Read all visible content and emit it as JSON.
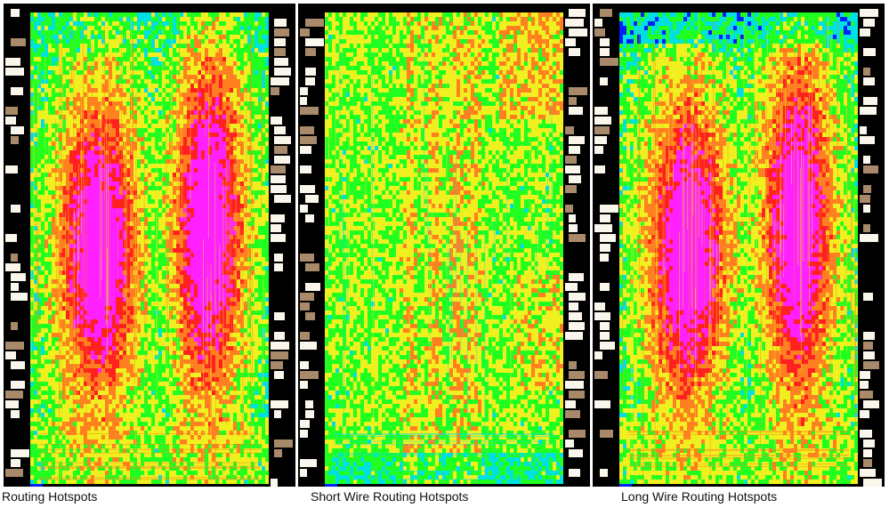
{
  "panels": [
    {
      "id": "routing",
      "caption": "Routing Hotspots",
      "variant": "mixed"
    },
    {
      "id": "short",
      "caption": "Short Wire Routing Hotspots",
      "variant": "short"
    },
    {
      "id": "long",
      "caption": "Long Wire Routing Hotspots",
      "variant": "long"
    }
  ],
  "colors": {
    "background": "#000000",
    "pad_tan": "#a88a6a",
    "pad_cream": "#fbf6ec",
    "low_blue": "#0020ff",
    "cyan": "#00e0e0",
    "green": "#20ff20",
    "yellow": "#f0f020",
    "orange": "#ff8020",
    "red": "#ff2020",
    "magenta": "#ff20ff"
  }
}
